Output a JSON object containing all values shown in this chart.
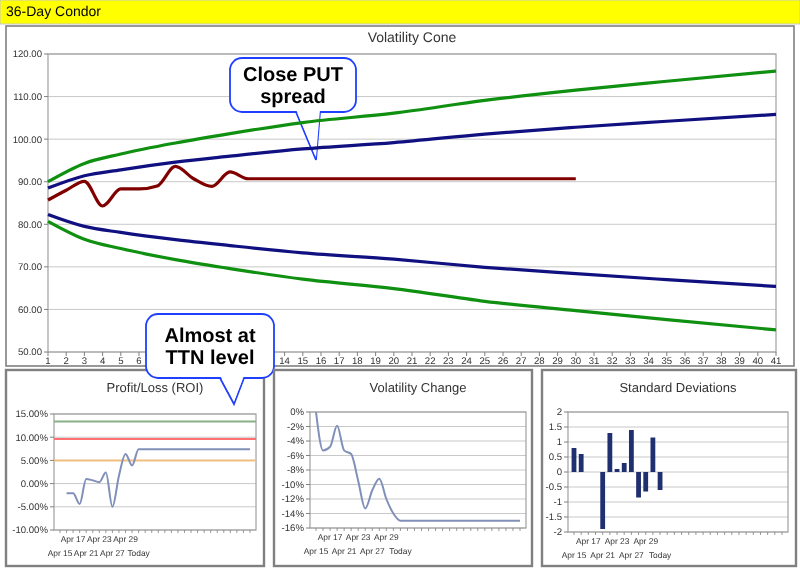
{
  "chart_data": [
    {
      "type": "other",
      "title": "36-Day Condor"
    },
    {
      "type": "line",
      "title": "Volatility Cone",
      "xlim": [
        1,
        41
      ],
      "xticks": [
        1,
        2,
        3,
        4,
        5,
        6,
        14,
        15,
        16,
        17,
        18,
        19,
        20,
        21,
        22,
        23,
        24,
        25,
        26,
        27,
        28,
        29,
        30,
        31,
        32,
        33,
        34,
        35,
        36,
        37,
        38,
        39,
        40,
        41
      ],
      "ylim": [
        50,
        120
      ],
      "yticks": [
        {
          "value": 50,
          "label": "50.00"
        },
        {
          "value": 60,
          "label": "60.00"
        },
        {
          "value": 70,
          "label": "70.00"
        },
        {
          "value": 80,
          "label": "80.00"
        },
        {
          "value": 90,
          "label": "90.00"
        },
        {
          "value": 100,
          "label": "100.00"
        },
        {
          "value": 110,
          "label": "110.00"
        },
        {
          "value": 120,
          "label": "120.00"
        }
      ],
      "grid": "y",
      "annotations": [
        "Close PUT spread"
      ],
      "series": [
        {
          "color": "#109010",
          "x": [
            1,
            3,
            5,
            8,
            11,
            15,
            20,
            25,
            30,
            35,
            41
          ],
          "values": [
            90,
            94.3,
            96.5,
            99.1,
            101.3,
            103.9,
            106.1,
            109.1,
            111.5,
            113.6,
            116
          ]
        },
        {
          "color": "#101080",
          "x": [
            1,
            3,
            5,
            8,
            11,
            15,
            20,
            25,
            30,
            35,
            41
          ],
          "values": [
            88.5,
            91.4,
            92.8,
            94.6,
            96,
            97.7,
            99.2,
            101.2,
            102.8,
            104.2,
            105.8
          ]
        },
        {
          "color": "#101080",
          "x": [
            1,
            3,
            5,
            8,
            11,
            15,
            20,
            25,
            30,
            35,
            41
          ],
          "values": [
            82.3,
            79.5,
            78.1,
            76.4,
            75,
            73.3,
            71.8,
            69.9,
            68.4,
            67,
            65.4
          ]
        },
        {
          "color": "#109010",
          "x": [
            1,
            3,
            5,
            8,
            11,
            15,
            20,
            25,
            30,
            35,
            41
          ],
          "values": [
            80.7,
            76.5,
            74.3,
            71.7,
            69.6,
            67.1,
            64.9,
            61.9,
            59.7,
            57.6,
            55.2
          ]
        },
        {
          "color": "#800000",
          "x": [
            1,
            2,
            3,
            4,
            5,
            6,
            7,
            8,
            9,
            10,
            11,
            12,
            30
          ],
          "values": [
            85.7,
            88,
            90.1,
            84.3,
            88.3,
            88.3,
            89,
            93.6,
            90.7,
            88.9,
            92.3,
            90.7,
            90.7
          ]
        }
      ]
    },
    {
      "type": "line",
      "title": "Profit/Loss (ROI)",
      "categories": [
        "Apr 15",
        null,
        "Apr 17",
        null,
        "Apr 21",
        null,
        "Apr 23",
        null,
        "Apr 27",
        null,
        "Apr 29",
        null,
        "Today",
        null,
        null,
        null,
        null,
        null,
        null,
        null,
        null,
        null,
        null,
        null,
        null,
        null,
        null,
        null,
        null,
        null
      ],
      "ylim": [
        -10,
        15
      ],
      "yticks": [
        {
          "value": -10,
          "label": "-10.00%"
        },
        {
          "value": -5,
          "label": "-5.00%"
        },
        {
          "value": 0,
          "label": "0.00%"
        },
        {
          "value": 5,
          "label": "5.00%"
        },
        {
          "value": 10,
          "label": "10.00%"
        },
        {
          "value": 15,
          "label": "15.00%"
        }
      ],
      "grid": "y",
      "annotations": [
        "Almost at TTN level"
      ],
      "ref_lines": [
        {
          "axis": "y",
          "value": 13.4,
          "color": "#88b088"
        },
        {
          "axis": "y",
          "value": 9.6,
          "color": "#ff7070"
        },
        {
          "axis": "y",
          "value": 5,
          "color": "#f0c080"
        }
      ],
      "series": [
        {
          "color": "#8090b8",
          "values": [
            null,
            -2.1,
            -2.1,
            -4.4,
            1.0,
            0.7,
            0.3,
            2.4,
            -5.0,
            1.7,
            6.4,
            3.9,
            7.4,
            7.4,
            7.4,
            7.4,
            7.4,
            7.4,
            7.4,
            7.4,
            7.4,
            7.4,
            7.4,
            7.4,
            7.4,
            7.4,
            7.4,
            7.4,
            7.4,
            7.4
          ]
        }
      ]
    },
    {
      "type": "line",
      "title": "Volatility Change",
      "categories": [
        "Apr 15",
        null,
        "Apr 17",
        null,
        "Apr 21",
        null,
        "Apr 23",
        null,
        "Apr 27",
        null,
        "Apr 29",
        null,
        "Today",
        null,
        null,
        null,
        null,
        null,
        null,
        null,
        null,
        null,
        null,
        null,
        null,
        null,
        null,
        null,
        null,
        null
      ],
      "ylim": [
        -16,
        0
      ],
      "yticks": [
        {
          "value": -16,
          "label": "-16%"
        },
        {
          "value": -14,
          "label": "-14%"
        },
        {
          "value": -12,
          "label": "-12%"
        },
        {
          "value": -10,
          "label": "-10%"
        },
        {
          "value": -8,
          "label": "-8%"
        },
        {
          "value": -6,
          "label": "-6%"
        },
        {
          "value": -4,
          "label": "-4%"
        },
        {
          "value": -2,
          "label": "-2%"
        },
        {
          "value": 0,
          "label": "0%"
        }
      ],
      "grid": "y",
      "series": [
        {
          "color": "#8090b8",
          "values": [
            0,
            -5.3,
            -4.8,
            -1.9,
            -5.3,
            -5.8,
            -9.5,
            -13.3,
            -10.8,
            -9.2,
            -12,
            -14,
            -15,
            -15,
            -15,
            -15,
            -15,
            -15,
            -15,
            -15,
            -15,
            -15,
            -15,
            -15,
            -15,
            -15,
            -15,
            -15,
            -15,
            -15
          ]
        }
      ]
    },
    {
      "type": "bar",
      "title": "Standard Deviations",
      "categories": [
        "Apr 15",
        null,
        "Apr 17",
        null,
        "Apr 21",
        null,
        "Apr 23",
        null,
        "Apr 27",
        null,
        "Apr 29",
        null,
        "Today",
        null,
        null,
        null,
        null,
        null,
        null,
        null,
        null,
        null,
        null,
        null,
        null,
        null,
        null,
        null,
        null,
        null
      ],
      "ylim": [
        -2,
        2
      ],
      "yticks": [
        -2,
        -1.5,
        -1,
        -0.5,
        0,
        0.5,
        1,
        1.5,
        2
      ],
      "grid": "y",
      "series": [
        {
          "color": "#1f2f6f",
          "values": [
            0.8,
            0.6,
            null,
            null,
            -1.9,
            1.3,
            0.1,
            0.3,
            1.4,
            -0.85,
            -0.65,
            1.15,
            -0.6,
            null,
            null,
            null,
            null,
            null,
            null,
            null,
            null,
            null,
            null,
            null,
            null,
            null,
            null,
            null,
            null,
            null
          ]
        }
      ]
    }
  ]
}
